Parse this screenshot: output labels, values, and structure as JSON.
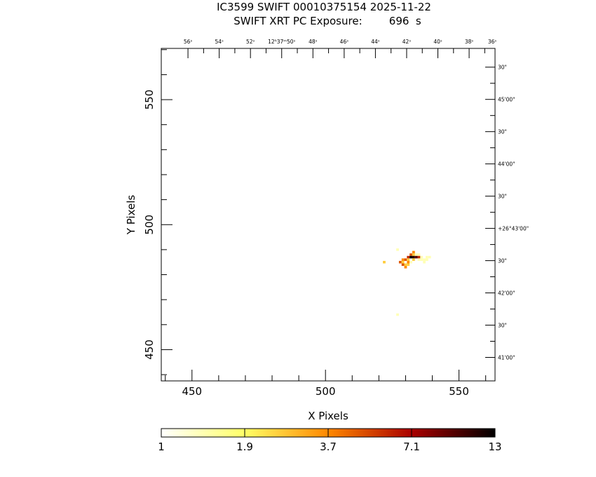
{
  "header": {
    "title_line1": "IC3599 SWIFT 00010375154 2025-11-22",
    "title_line2": "SWIFT XRT PC Exposure:        696  s"
  },
  "chart_data": {
    "type": "heatmap",
    "xlabel": "X Pixels",
    "ylabel": "Y Pixels",
    "xlim": [
      438.5,
      563.5
    ],
    "ylim": [
      437.5,
      570.5
    ],
    "x_ticks": [
      450,
      500,
      550
    ],
    "y_ticks": [
      450,
      500,
      550
    ],
    "x_minor_step": 10,
    "y_minor_step": 10,
    "grid": false,
    "top_axis_labels": [
      "56ˢ",
      "54ˢ",
      "52ˢ",
      "12ʰ37ᵐ50ˢ",
      "48ˢ",
      "46ˢ",
      "44ˢ",
      "42ˢ",
      "40ˢ",
      "38ˢ",
      "36ˢ"
    ],
    "top_axis_x": [
      448.5,
      460.2,
      471.9,
      483.6,
      495.3,
      507.0,
      518.7,
      530.4,
      542.1,
      553.8,
      565.5
    ],
    "right_axis_labels": [
      "30\"",
      "45'00\"",
      "30\"",
      "44'00\"",
      "30\"",
      "+26°43'00\"",
      "30\"",
      "42'00\"",
      "30\"",
      "41'00\""
    ],
    "right_axis_y": [
      563.0,
      550.1,
      537.2,
      524.3,
      511.4,
      498.5,
      485.6,
      472.7,
      459.8,
      446.9
    ],
    "pixels": [
      {
        "x": 527,
        "y": 490,
        "v": 1
      },
      {
        "x": 533,
        "y": 489,
        "v": 3
      },
      {
        "x": 532,
        "y": 488,
        "v": 4
      },
      {
        "x": 533,
        "y": 488,
        "v": 2
      },
      {
        "x": 534,
        "y": 488,
        "v": 1
      },
      {
        "x": 535,
        "y": 488,
        "v": 1
      },
      {
        "x": 531,
        "y": 487,
        "v": 5
      },
      {
        "x": 532,
        "y": 487,
        "v": 13
      },
      {
        "x": 533,
        "y": 487,
        "v": 11
      },
      {
        "x": 534,
        "y": 487,
        "v": 9
      },
      {
        "x": 535,
        "y": 487,
        "v": 5
      },
      {
        "x": 536,
        "y": 487,
        "v": 1
      },
      {
        "x": 538,
        "y": 487,
        "v": 1
      },
      {
        "x": 539,
        "y": 487,
        "v": 1
      },
      {
        "x": 529,
        "y": 486,
        "v": 3
      },
      {
        "x": 530,
        "y": 486,
        "v": 4
      },
      {
        "x": 531,
        "y": 486,
        "v": 2
      },
      {
        "x": 533,
        "y": 486,
        "v": 2
      },
      {
        "x": 535,
        "y": 486,
        "v": 1
      },
      {
        "x": 536,
        "y": 486,
        "v": 1
      },
      {
        "x": 537,
        "y": 486,
        "v": 1
      },
      {
        "x": 538,
        "y": 486,
        "v": 1
      },
      {
        "x": 522,
        "y": 485,
        "v": 2
      },
      {
        "x": 528,
        "y": 485,
        "v": 4
      },
      {
        "x": 529,
        "y": 485,
        "v": 2
      },
      {
        "x": 531,
        "y": 485,
        "v": 3
      },
      {
        "x": 532,
        "y": 485,
        "v": 1
      },
      {
        "x": 537,
        "y": 485,
        "v": 1
      },
      {
        "x": 529,
        "y": 484,
        "v": 4
      },
      {
        "x": 530,
        "y": 484,
        "v": 2
      },
      {
        "x": 531,
        "y": 484,
        "v": 2
      },
      {
        "x": 530,
        "y": 483,
        "v": 3
      },
      {
        "x": 527,
        "y": 464,
        "v": 1
      }
    ],
    "colorbar": {
      "tick_labels": [
        "1",
        "1.9",
        "3.7",
        "7.1",
        "13"
      ],
      "stops": [
        "#ffffff",
        "#ffff66",
        "#ff8800",
        "#aa0000",
        "#000000"
      ]
    }
  }
}
